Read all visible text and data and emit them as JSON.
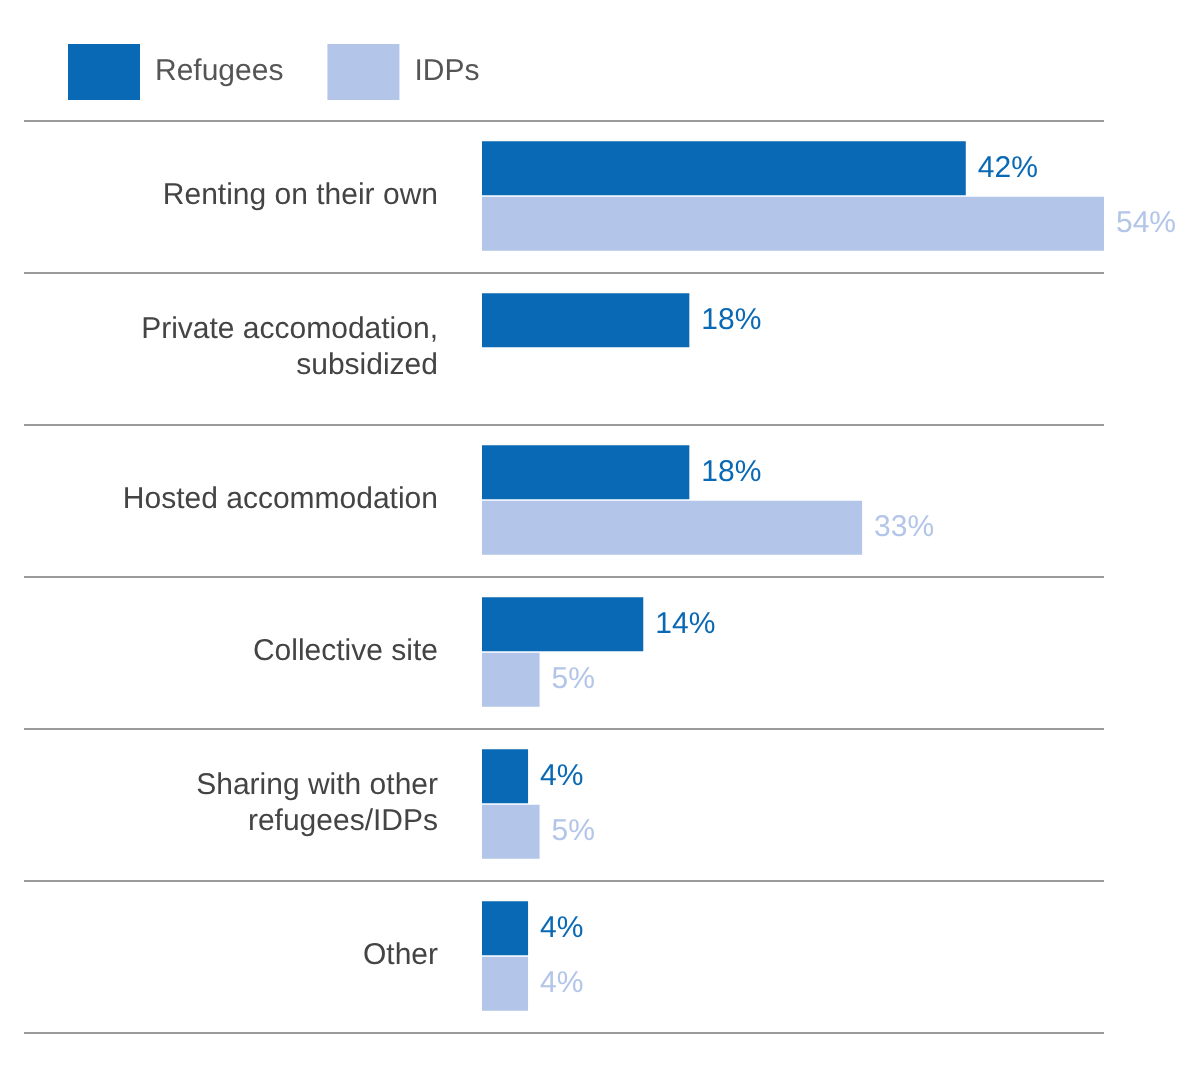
{
  "chart_data": {
    "type": "bar",
    "orientation": "horizontal",
    "legend": "top left",
    "grid": "y",
    "tick_labels": "y",
    "categories": [
      "Renting on their own",
      "Private accomodation, subsidized",
      "Hosted accommodation",
      "Collective site",
      "Sharing with other refugees/IDPs",
      "Other"
    ],
    "series": [
      {
        "name": "Refugees",
        "color": "#0a69b4",
        "values": [
          42,
          18,
          18,
          14,
          4,
          4
        ],
        "value_labels": [
          "42%",
          "18%",
          "18%",
          "14%",
          "4%",
          "4%"
        ]
      },
      {
        "name": "IDPs",
        "color": "#b3c5e8",
        "values": [
          54,
          null,
          33,
          5,
          5,
          4
        ],
        "value_labels": [
          "54%",
          null,
          "33%",
          "5%",
          "5%",
          "4%"
        ]
      }
    ]
  }
}
